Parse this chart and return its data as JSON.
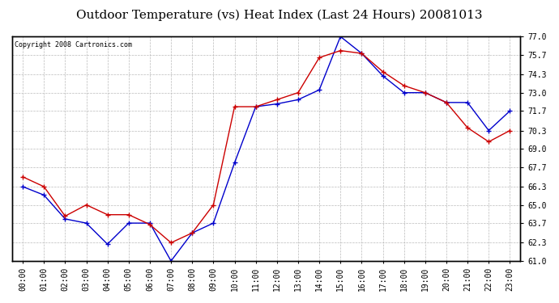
{
  "title": "Outdoor Temperature (vs) Heat Index (Last 24 Hours) 20081013",
  "copyright": "Copyright 2008 Cartronics.com",
  "x_labels": [
    "00:00",
    "01:00",
    "02:00",
    "03:00",
    "04:00",
    "05:00",
    "06:00",
    "07:00",
    "08:00",
    "09:00",
    "10:00",
    "11:00",
    "12:00",
    "13:00",
    "14:00",
    "15:00",
    "16:00",
    "17:00",
    "18:00",
    "19:00",
    "20:00",
    "21:00",
    "22:00",
    "23:00"
  ],
  "blue_data": [
    66.3,
    65.7,
    64.0,
    63.7,
    62.2,
    63.7,
    63.7,
    61.0,
    63.0,
    63.7,
    68.0,
    72.0,
    72.2,
    72.5,
    73.2,
    77.0,
    75.8,
    74.2,
    73.0,
    73.0,
    72.3,
    72.3,
    70.3,
    71.7
  ],
  "red_data": [
    67.0,
    66.3,
    64.2,
    65.0,
    64.3,
    64.3,
    63.6,
    62.3,
    63.0,
    65.0,
    72.0,
    72.0,
    72.5,
    73.0,
    75.5,
    76.0,
    75.8,
    74.5,
    73.5,
    73.0,
    72.3,
    70.5,
    69.5,
    70.3
  ],
  "blue_color": "#0000cc",
  "red_color": "#cc0000",
  "bg_color": "#ffffff",
  "grid_color": "#bbbbbb",
  "ylim_min": 61.0,
  "ylim_max": 77.0,
  "yticks": [
    61.0,
    62.3,
    63.7,
    65.0,
    66.3,
    67.7,
    69.0,
    70.3,
    71.7,
    73.0,
    74.3,
    75.7,
    77.0
  ],
  "title_fontsize": 11,
  "copyright_fontsize": 6,
  "tick_fontsize": 7
}
